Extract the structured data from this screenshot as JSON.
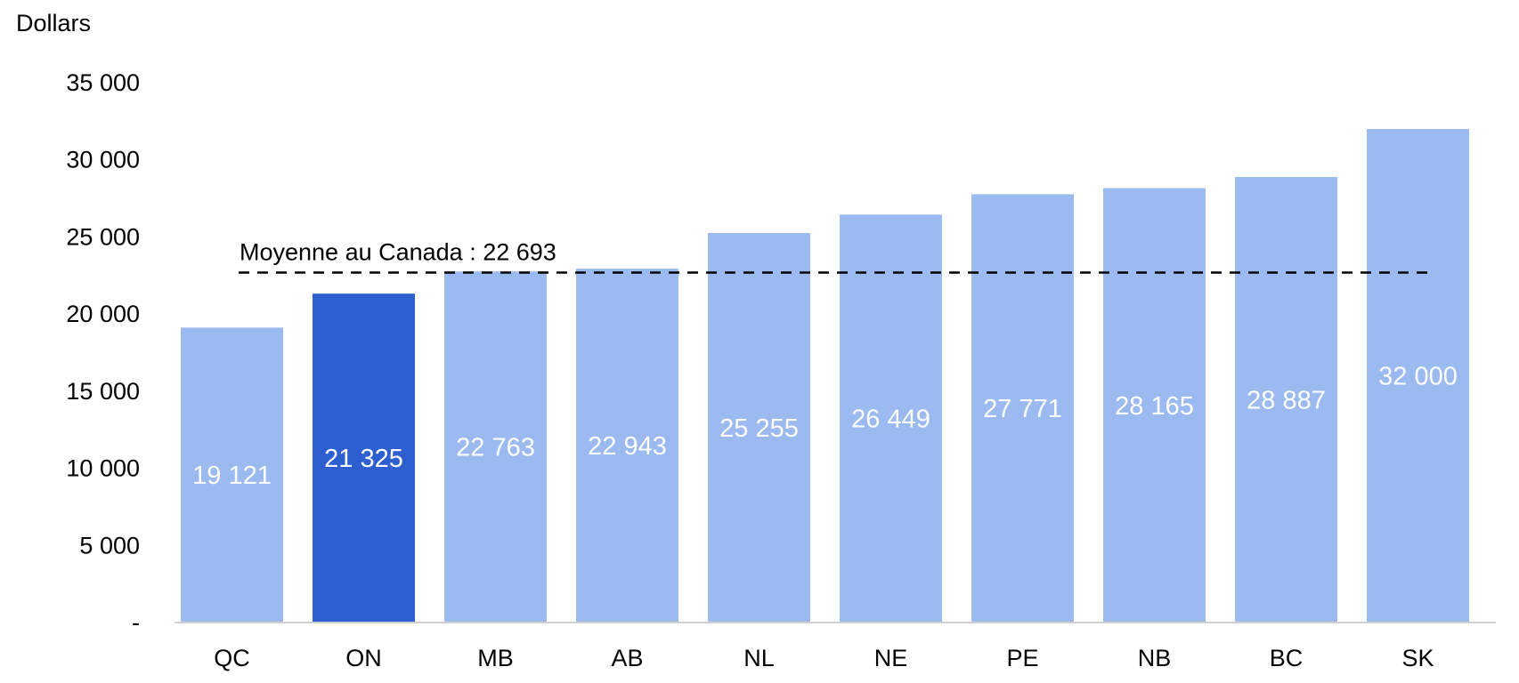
{
  "chart_data": {
    "type": "bar",
    "ylabel": "Dollars",
    "categories": [
      "QC",
      "ON",
      "MB",
      "AB",
      "NL",
      "NE",
      "PE",
      "NB",
      "BC",
      "SK"
    ],
    "values": [
      19121,
      21325,
      22763,
      22943,
      25255,
      26449,
      27771,
      28165,
      28887,
      32000
    ],
    "value_labels": [
      "19 121",
      "21 325",
      "22 763",
      "22 943",
      "25 255",
      "26 449",
      "27 771",
      "28 165",
      "28 887",
      "32 000"
    ],
    "highlight_category": "ON",
    "ylim": [
      0,
      35000
    ],
    "yticks": [
      0,
      5000,
      10000,
      15000,
      20000,
      25000,
      30000,
      35000
    ],
    "ytick_labels": [
      "-",
      "5 000",
      "10 000",
      "15 000",
      "20 000",
      "25 000",
      "30 000",
      "35 000"
    ],
    "reference_line": {
      "value": 22693,
      "label": "Moyenne au Canada : 22 693",
      "style": "dashed"
    },
    "grid": false,
    "legend": "none",
    "colors": {
      "bar": "#9bbaf0",
      "highlight": "#2e5fd0",
      "reference_line": "#000000",
      "baseline": "#d0d0d0"
    }
  }
}
